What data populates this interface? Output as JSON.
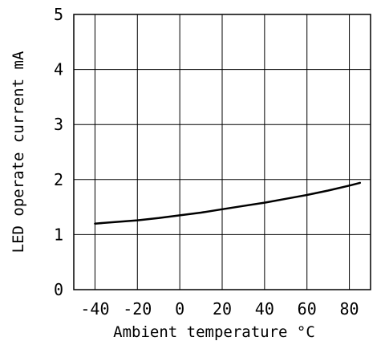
{
  "chart_data": {
    "type": "line",
    "title": "",
    "xlabel": "Ambient temperature °C",
    "ylabel": "LED operate current mA",
    "xlim": [
      -50,
      90
    ],
    "ylim": [
      0,
      5
    ],
    "x_ticks": [
      -40,
      -20,
      0,
      20,
      40,
      60,
      80
    ],
    "x_tick_labels": [
      "-40",
      "-20",
      "0",
      "20",
      "40",
      "60",
      "80"
    ],
    "y_ticks": [
      0,
      1,
      2,
      3,
      4,
      5
    ],
    "y_tick_labels": [
      "0",
      "1",
      "2",
      "3",
      "4",
      "5"
    ],
    "grid": true,
    "legend": "none",
    "series": [
      {
        "x": [
          -40,
          -30,
          -20,
          -10,
          0,
          10,
          20,
          30,
          40,
          50,
          60,
          70,
          80,
          85
        ],
        "y": [
          1.2,
          1.23,
          1.26,
          1.3,
          1.35,
          1.4,
          1.46,
          1.52,
          1.58,
          1.65,
          1.72,
          1.8,
          1.89,
          1.94
        ]
      }
    ],
    "colors": {
      "line": "#000000",
      "grid": "#000000",
      "background": "#ffffff"
    }
  }
}
